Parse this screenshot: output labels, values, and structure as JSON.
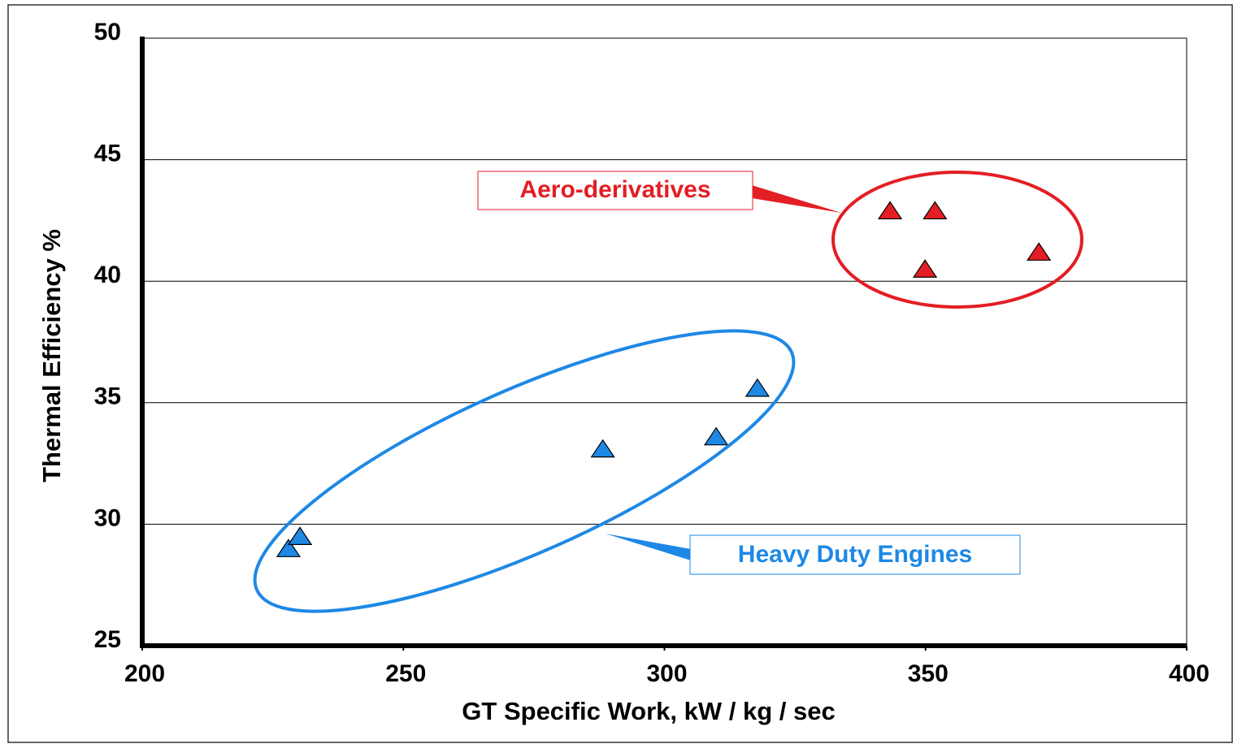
{
  "chart_data": {
    "type": "scatter",
    "xlabel": "GT Specific Work,  kW / kg / sec",
    "ylabel": "Thermal Efficiency  %",
    "xlim": [
      200,
      400
    ],
    "xticks": [
      200,
      250,
      300,
      350,
      400
    ],
    "ylim": [
      25,
      50
    ],
    "yticks": [
      25,
      30,
      35,
      40,
      45,
      50
    ],
    "grid": true,
    "series": [
      {
        "name": "Aero-derivatives",
        "color": "#e31e24",
        "x": [
          343.2,
          351.8,
          349.9,
          371.7
        ],
        "values": [
          42.9,
          42.9,
          40.5,
          41.2
        ]
      },
      {
        "name": "Heavy Duty Engines",
        "color": "#1e88e5",
        "x": [
          228.0,
          230.2,
          288.2,
          309.9,
          317.8
        ],
        "values": [
          29.0,
          29.5,
          33.1,
          33.6,
          35.6
        ]
      }
    ]
  }
}
